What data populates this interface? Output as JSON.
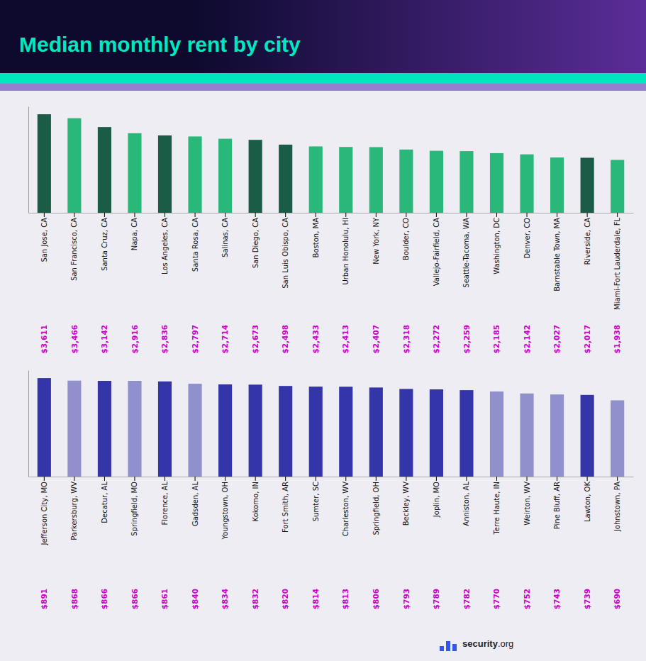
{
  "chart_data": [
    {
      "type": "bar",
      "title": "Median monthly rent by city",
      "categories": [
        "San Jose, CA",
        "San Francisco, CA",
        "Santa Cruz, CA",
        "Napa, CA",
        "Los Angeles, CA",
        "Santa Rosa, CA",
        "Salinas, CA",
        "San Diego, CA",
        "San Luis Obispo, CA",
        "Boston, MA",
        "Urban Honolulu, HI",
        "New York, NY",
        "Boulder, CO",
        "Vallejo-Fairfield, CA",
        "Seattle-Tacoma, WA",
        "Washington, DC",
        "Denver, CO",
        "Barnstable Town, MA",
        "Riverside, CA",
        "Miami-Fort Lauderdale, FL"
      ],
      "values": [
        3611,
        3466,
        3142,
        2916,
        2836,
        2797,
        2714,
        2673,
        2498,
        2433,
        2413,
        2407,
        2318,
        2272,
        2259,
        2185,
        2142,
        2027,
        2017,
        1938
      ],
      "value_labels": [
        "$3,611",
        "$3,466",
        "$3,142",
        "$2,916",
        "$2,836",
        "$2,797",
        "$2,714",
        "$2,673",
        "$2,498",
        "$2,433",
        "$2,413",
        "$2,407",
        "$2,318",
        "$2,272",
        "$2,259",
        "$2,185",
        "$2,142",
        "$2,027",
        "$2,017",
        "$1,938"
      ],
      "colors": [
        "#1a5c45",
        "#2ab87a",
        "#1a5c45",
        "#2ab87a",
        "#1a5c45",
        "#2ab87a",
        "#2ab87a",
        "#1a5c45",
        "#1a5c45",
        "#2ab87a",
        "#2ab87a",
        "#2ab87a",
        "#2ab87a",
        "#2ab87a",
        "#2ab87a",
        "#2ab87a",
        "#2ab87a",
        "#2ab87a",
        "#1a5c45",
        "#2ab87a"
      ],
      "ylim": [
        0,
        3899.88
      ],
      "data_labels": true,
      "tick_labels": "x",
      "grid": false
    },
    {
      "type": "bar",
      "categories": [
        "Jefferson City, MO",
        "Parkersburg, WV",
        "Decatur, AL",
        "Springfield, MO",
        "Florence, AL",
        "Gadsden, AL",
        "Youngstown, OH",
        "Kokomo, IN",
        "Fort Smith, AR",
        "Sumter, SC",
        "Charleston, WV",
        "Springfield, OH",
        "Beckley, WV",
        "Joplin, MO",
        "Anniston, AL",
        "Terre Haute, IN",
        "Weirton, WV",
        "Pine Bluff, AR",
        "Lawton, OK",
        "Johnstown, PA"
      ],
      "values": [
        891,
        868,
        866,
        866,
        861,
        840,
        834,
        832,
        820,
        814,
        813,
        806,
        793,
        789,
        782,
        770,
        752,
        743,
        739,
        690
      ],
      "value_labels": [
        "$891",
        "$868",
        "$866",
        "$866",
        "$861",
        "$840",
        "$834",
        "$832",
        "$820",
        "$814",
        "$813",
        "$806",
        "$793",
        "$789",
        "$782",
        "$770",
        "$752",
        "$743",
        "$739",
        "$690"
      ],
      "colors": [
        "#3535aa",
        "#9090cc",
        "#3535aa",
        "#9090cc",
        "#3535aa",
        "#9090cc",
        "#3535aa",
        "#3535aa",
        "#3535aa",
        "#3535aa",
        "#3535aa",
        "#3535aa",
        "#3535aa",
        "#3535aa",
        "#3535aa",
        "#9090cc",
        "#9090cc",
        "#9090cc",
        "#3535aa",
        "#9090cc"
      ],
      "ylim": [
        0,
        962.28
      ],
      "data_labels": true,
      "tick_labels": "x",
      "grid": false,
      "annotations": [
        "security",
        ".org"
      ]
    }
  ]
}
